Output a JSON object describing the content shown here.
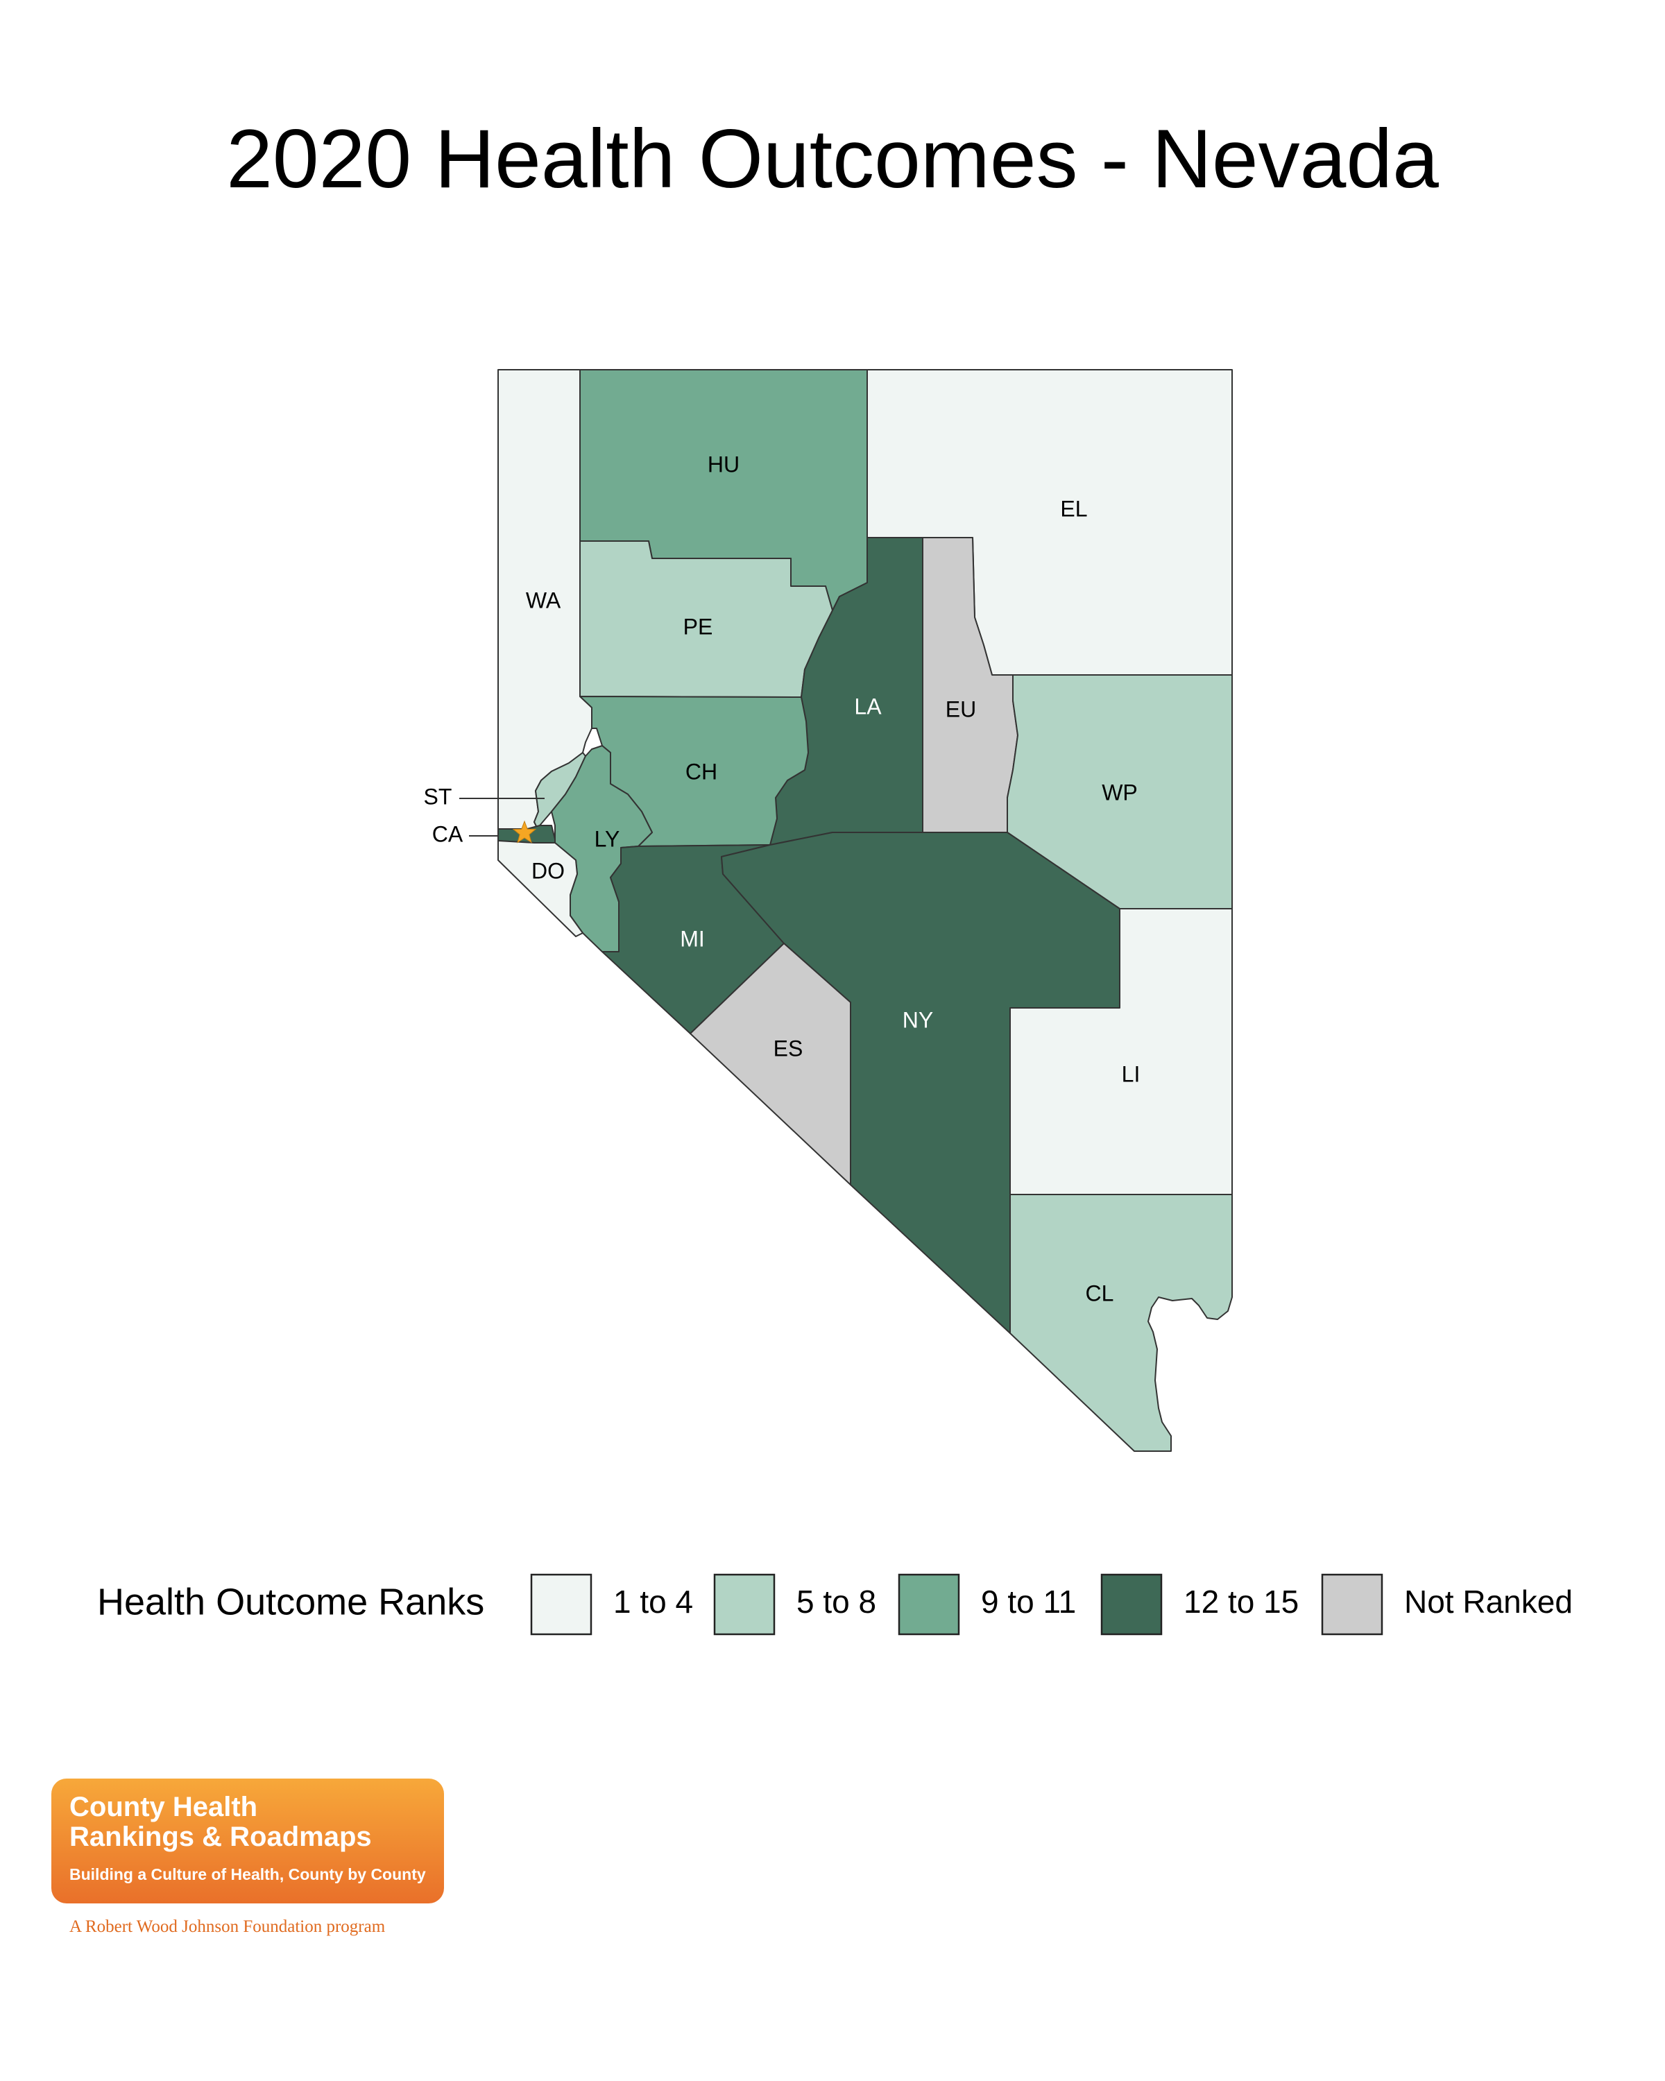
{
  "title": "2020 Health Outcomes - Nevada",
  "colors": {
    "1 to 4": "#f0f5f3",
    "5 to 8": "#b2d4c5",
    "9 to 11": "#72ab91",
    "12 to 15": "#3e6956",
    "Not Ranked": "#cccccc",
    "capital_star": "#f5a623"
  },
  "counties": [
    {
      "abbr": "WA",
      "rank_group": "1 to 4"
    },
    {
      "abbr": "HU",
      "rank_group": "9 to 11"
    },
    {
      "abbr": "EL",
      "rank_group": "1 to 4"
    },
    {
      "abbr": "PE",
      "rank_group": "5 to 8"
    },
    {
      "abbr": "LA",
      "rank_group": "12 to 15"
    },
    {
      "abbr": "EU",
      "rank_group": "Not Ranked"
    },
    {
      "abbr": "WP",
      "rank_group": "5 to 8"
    },
    {
      "abbr": "CH",
      "rank_group": "9 to 11"
    },
    {
      "abbr": "ST",
      "rank_group": "5 to 8"
    },
    {
      "abbr": "CA",
      "rank_group": "12 to 15"
    },
    {
      "abbr": "LY",
      "rank_group": "9 to 11"
    },
    {
      "abbr": "DO",
      "rank_group": "1 to 4"
    },
    {
      "abbr": "MI",
      "rank_group": "12 to 15"
    },
    {
      "abbr": "NY",
      "rank_group": "12 to 15"
    },
    {
      "abbr": "ES",
      "rank_group": "Not Ranked"
    },
    {
      "abbr": "LI",
      "rank_group": "1 to 4"
    },
    {
      "abbr": "CL",
      "rank_group": "5 to 8"
    }
  ],
  "legend": {
    "title": "Health Outcome Ranks",
    "items": [
      "1 to 4",
      "5 to 8",
      "9 to 11",
      "12 to 15",
      "Not Ranked"
    ]
  },
  "logo": {
    "line1": "County Health",
    "line2": "Rankings & Roadmaps",
    "tagline": "Building a Culture of Health, County by County",
    "footer": "A Robert Wood Johnson Foundation program"
  }
}
